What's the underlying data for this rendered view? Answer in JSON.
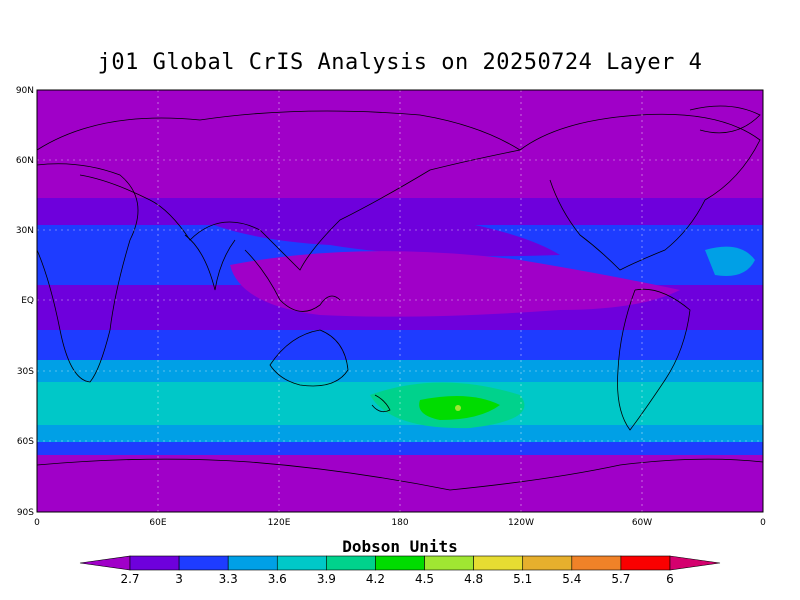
{
  "title": "j01 Global CrIS Analysis on 20250724 Layer 4",
  "lat_ticks": [
    "90N",
    "60N",
    "30N",
    "EQ",
    "30S",
    "60S",
    "90S"
  ],
  "lon_ticks": [
    "0",
    "60E",
    "120E",
    "180",
    "120W",
    "60W",
    "0"
  ],
  "colorbar": {
    "title": "Dobson Units",
    "labels": [
      "2.7",
      "3",
      "3.3",
      "3.6",
      "3.9",
      "4.2",
      "4.5",
      "4.8",
      "5.1",
      "5.4",
      "5.7",
      "6"
    ],
    "colors": [
      "#a000c8",
      "#6e00dc",
      "#1e3cff",
      "#00a0e6",
      "#00c8c8",
      "#00d28c",
      "#00dc00",
      "#a0e632",
      "#e6dc32",
      "#e6af2d",
      "#f08228",
      "#fa0000",
      "#d4006e"
    ]
  },
  "map_field": {
    "units": "Dobson Units",
    "projection": "cylindrical equidistant",
    "longitude_range": [
      0,
      360
    ],
    "latitude_range": [
      -90,
      90
    ],
    "zonal_bands": [
      {
        "lat_from": 90,
        "lat_to": 40,
        "value_range": "2.7-3.0",
        "color": "#a000c8"
      },
      {
        "lat_from": 40,
        "lat_to": 30,
        "value_range": "3.0-3.3",
        "color": "#6e00dc"
      },
      {
        "lat_from": 30,
        "lat_to": 10,
        "value_range": "3.3-3.6",
        "color": "#1e3cff"
      },
      {
        "lat_from": 10,
        "lat_to": -10,
        "value_range": "3.0-3.3",
        "color": "#6e00dc"
      },
      {
        "lat_from": -10,
        "lat_to": -25,
        "value_range": "3.3-3.6",
        "color": "#1e3cff"
      },
      {
        "lat_from": -25,
        "lat_to": -35,
        "value_range": "3.6-3.9",
        "color": "#00a0e6"
      },
      {
        "lat_from": -35,
        "lat_to": -55,
        "value_range": "3.9-4.2",
        "color": "#00c8c8"
      },
      {
        "lat_from": -55,
        "lat_to": -62,
        "value_range": "3.6-3.9",
        "color": "#00a0e6"
      },
      {
        "lat_from": -62,
        "lat_to": -68,
        "value_range": "3.3-3.6",
        "color": "#1e3cff"
      },
      {
        "lat_from": -68,
        "lat_to": -90,
        "value_range": "2.7-3.0",
        "color": "#a000c8"
      }
    ],
    "features": [
      {
        "region": "Pacific Tropics",
        "value_range": "2.7-3.0",
        "color": "#a000c8"
      },
      {
        "region": "Central Asia",
        "value_range": "3.0-3.3",
        "color": "#6e00dc"
      },
      {
        "region": "Southern Pacific max (~45S, 160W)",
        "value_range": "4.5-4.8",
        "color": "#00dc00"
      }
    ]
  }
}
